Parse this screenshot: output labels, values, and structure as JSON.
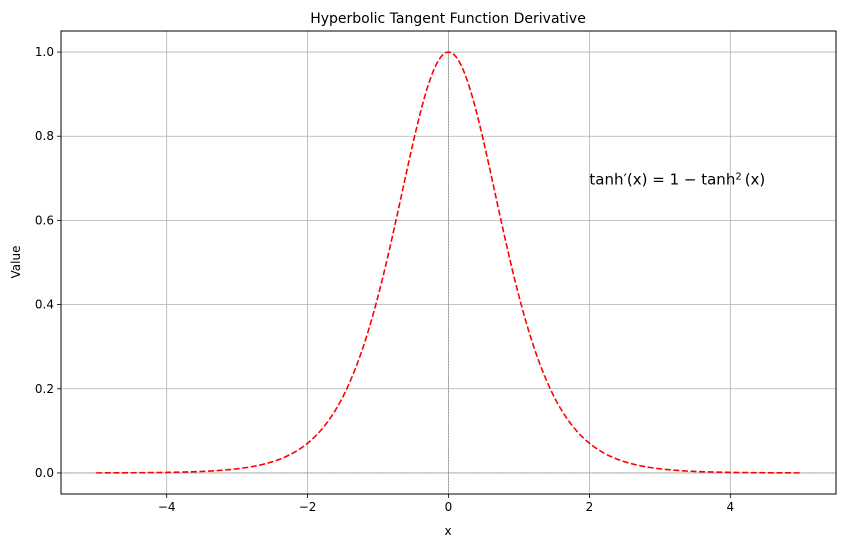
{
  "chart_data": {
    "type": "line",
    "title": "Hyperbolic Tangent Function Derivative",
    "xlabel": "x",
    "ylabel": "Value",
    "xlim": [
      -5.5,
      5.5
    ],
    "ylim": [
      -0.05,
      1.05
    ],
    "xticks": [
      -4,
      -2,
      0,
      2,
      4
    ],
    "xtick_labels": [
      "−4",
      "−2",
      "0",
      "2",
      "4"
    ],
    "yticks": [
      0.0,
      0.2,
      0.4,
      0.6,
      0.8,
      1.0
    ],
    "ytick_labels": [
      "0.0",
      "0.2",
      "0.4",
      "0.6",
      "0.8",
      "1.0"
    ],
    "grid": true,
    "reference_lines": {
      "x": 0,
      "y": 0
    },
    "series": [
      {
        "function": "1 - tanh(x)^2",
        "x_range": [
          -5,
          5
        ],
        "color": "#ff0000",
        "line_style": "dashed"
      }
    ],
    "annotation": {
      "text_main": "tanh′(x) = 1 − tanh",
      "text_sup": "2",
      "text_tail": "(x)",
      "x": 2,
      "y": 0.7,
      "color": "#ff0000"
    }
  }
}
